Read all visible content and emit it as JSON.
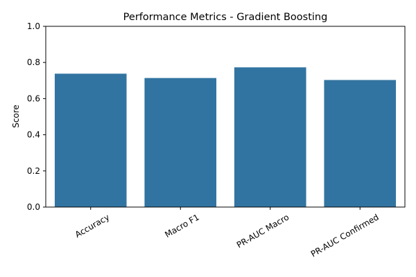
{
  "chart_data": {
    "type": "bar",
    "title": "Performance Metrics - Gradient Boosting",
    "xlabel": "",
    "ylabel": "Score",
    "categories": [
      "Accuracy",
      "Macro F1",
      "PR-AUC Macro",
      "PR-AUC Confirmed"
    ],
    "values": [
      0.738,
      0.714,
      0.773,
      0.703
    ],
    "ylim": [
      0,
      1.0
    ],
    "yticks": [
      "0.0",
      "0.2",
      "0.4",
      "0.6",
      "0.8",
      "1.0"
    ],
    "bar_color": "#3274a1",
    "grid": false,
    "legend": "none"
  }
}
